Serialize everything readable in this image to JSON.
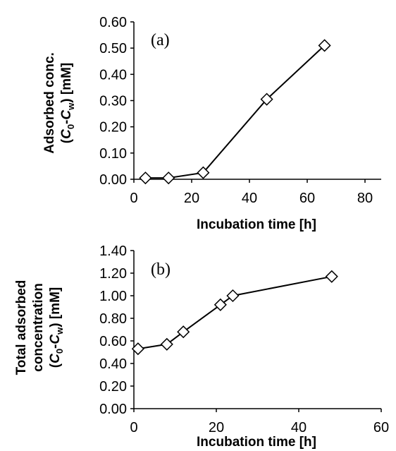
{
  "chart_data": [
    {
      "type": "line",
      "panel_label": "(a)",
      "xlabel": "Incubation time [h]",
      "ylabel": {
        "line1": "Adsorbed conc.",
        "line2_open": "(",
        "c": "C",
        "sub0": "0",
        "dash": "-",
        "cw": "C",
        "subw": "w",
        "line2_close": ") [mM]"
      },
      "xlim": [
        0,
        80
      ],
      "ylim": [
        0,
        0.6
      ],
      "xticks": [
        "0",
        "20",
        "40",
        "60",
        "80"
      ],
      "yticks": [
        "0.00",
        "0.10",
        "0.20",
        "0.30",
        "0.40",
        "0.50",
        "0.60"
      ],
      "x": [
        4,
        12,
        24,
        46,
        66
      ],
      "y": [
        0.005,
        0.005,
        0.025,
        0.305,
        0.51
      ],
      "marker": "open-diamond"
    },
    {
      "type": "line",
      "panel_label": "(b)",
      "xlabel": "Incubation time [h]",
      "ylabel": {
        "line1": "Total adsorbed",
        "line1b": "concentration",
        "line2_open": "(",
        "c": "C",
        "sub0": "0",
        "dash": "-",
        "cw": "C",
        "subw": "w",
        "line2_close": ") [mM]"
      },
      "xlim": [
        0,
        60
      ],
      "ylim": [
        0,
        1.4
      ],
      "xticks": [
        "0",
        "20",
        "40",
        "60"
      ],
      "yticks": [
        "0.00",
        "0.20",
        "0.40",
        "0.60",
        "0.80",
        "1.00",
        "1.20",
        "1.40"
      ],
      "x": [
        1,
        8,
        12,
        21,
        24,
        48
      ],
      "y": [
        0.53,
        0.57,
        0.68,
        0.92,
        1.0,
        1.17
      ],
      "marker": "open-diamond"
    }
  ]
}
